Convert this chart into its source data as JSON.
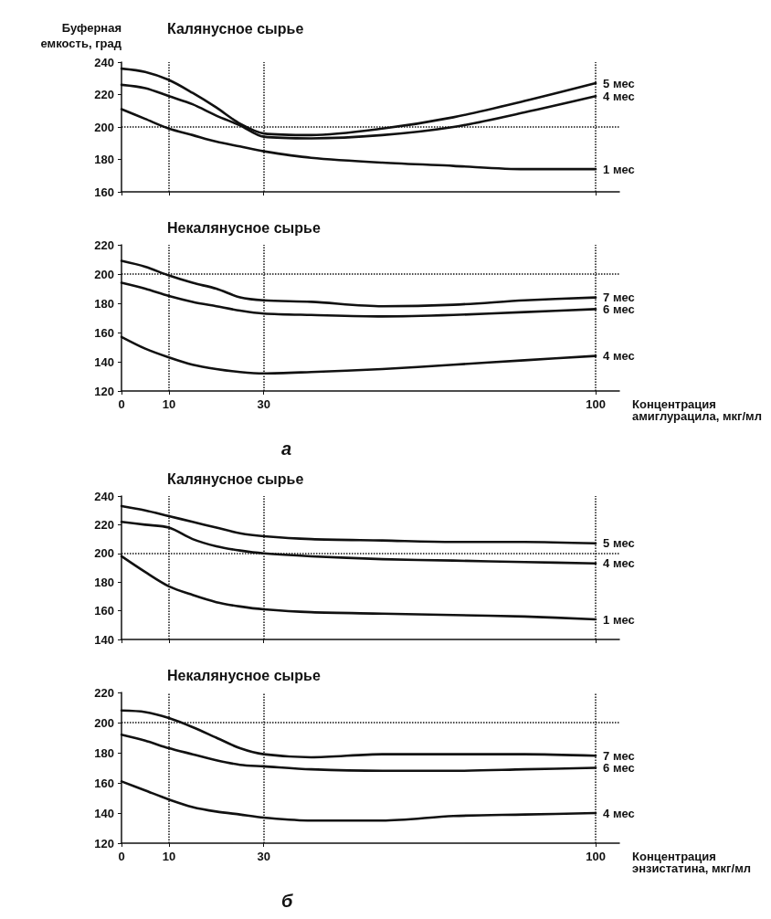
{
  "chart_data": [
    {
      "type": "line",
      "title": "Калянусное сырье",
      "ylabel": "Буферная емкость, град",
      "x": [
        0,
        5,
        10,
        15,
        20,
        25,
        30,
        40,
        55,
        70,
        85,
        100
      ],
      "xlim": [
        0,
        105
      ],
      "xticks": [
        0,
        10,
        30,
        100
      ],
      "ylim": [
        160,
        240
      ],
      "yticks": [
        160,
        180,
        200,
        220,
        240
      ],
      "tick_labels": "y",
      "grid": false,
      "legend": false,
      "marker": "none",
      "line_style": "solid",
      "ref_lines": [
        {
          "axis": "y",
          "value": 200,
          "line_style": "dotted"
        },
        {
          "axis": "x",
          "value": 10,
          "line_style": "dotted"
        },
        {
          "axis": "x",
          "value": 30,
          "line_style": "dotted"
        },
        {
          "axis": "x",
          "value": 100,
          "line_style": "dotted"
        }
      ],
      "series": [
        {
          "name": "5 мес",
          "color": "#111111",
          "values": [
            236,
            234,
            229,
            221,
            212,
            202,
            196,
            195,
            199,
            206,
            216,
            227
          ]
        },
        {
          "name": "4 мес",
          "color": "#111111",
          "values": [
            226,
            224,
            219,
            214,
            207,
            201,
            194,
            193,
            195,
            200,
            209,
            219
          ]
        },
        {
          "name": "1 мес",
          "color": "#111111",
          "values": [
            211,
            205,
            199,
            195,
            191,
            188,
            185,
            181,
            178,
            176,
            174,
            174
          ]
        }
      ]
    },
    {
      "type": "line",
      "title": "Некалянусное сырье",
      "xlabel": "Концентрация амиглурацила, мкг/мл",
      "annotations": [
        "а"
      ],
      "x": [
        0,
        5,
        10,
        15,
        20,
        25,
        30,
        40,
        55,
        70,
        85,
        100
      ],
      "xlim": [
        0,
        105
      ],
      "xticks": [
        0,
        10,
        30,
        100
      ],
      "ylim": [
        120,
        220
      ],
      "yticks": [
        120,
        140,
        160,
        180,
        200,
        220
      ],
      "grid": false,
      "legend": false,
      "marker": "none",
      "line_style": "solid",
      "ref_lines": [
        {
          "axis": "y",
          "value": 200,
          "line_style": "dotted"
        },
        {
          "axis": "x",
          "value": 10,
          "line_style": "dotted"
        },
        {
          "axis": "x",
          "value": 30,
          "line_style": "dotted"
        },
        {
          "axis": "x",
          "value": 100,
          "line_style": "dotted"
        }
      ],
      "series": [
        {
          "name": "7 мес",
          "color": "#111111",
          "values": [
            209,
            205,
            199,
            194,
            190,
            184,
            182,
            181,
            178,
            179,
            182,
            184
          ]
        },
        {
          "name": "6 мес",
          "color": "#111111",
          "values": [
            194,
            190,
            185,
            181,
            178,
            175,
            173,
            172,
            171,
            172,
            174,
            176
          ]
        },
        {
          "name": "4 мес",
          "color": "#111111",
          "values": [
            157,
            149,
            143,
            138,
            135,
            133,
            132,
            133,
            135,
            138,
            141,
            144
          ]
        }
      ]
    },
    {
      "type": "line",
      "title": "Калянусное сырье",
      "x": [
        0,
        5,
        10,
        15,
        20,
        25,
        30,
        40,
        55,
        70,
        85,
        100
      ],
      "xlim": [
        0,
        105
      ],
      "xticks": [
        0,
        10,
        30,
        100
      ],
      "ylim": [
        140,
        240
      ],
      "yticks": [
        140,
        160,
        180,
        200,
        220,
        240
      ],
      "tick_labels": "y",
      "grid": false,
      "legend": false,
      "marker": "none",
      "line_style": "solid",
      "ref_lines": [
        {
          "axis": "y",
          "value": 200,
          "line_style": "dotted"
        },
        {
          "axis": "x",
          "value": 10,
          "line_style": "dotted"
        },
        {
          "axis": "x",
          "value": 30,
          "line_style": "dotted"
        },
        {
          "axis": "x",
          "value": 100,
          "line_style": "dotted"
        }
      ],
      "series": [
        {
          "name": "5 мес",
          "color": "#111111",
          "values": [
            233,
            230,
            226,
            222,
            218,
            214,
            212,
            210,
            209,
            208,
            208,
            207
          ]
        },
        {
          "name": "4 мес",
          "color": "#111111",
          "values": [
            222,
            220,
            218,
            210,
            205,
            202,
            200,
            198,
            196,
            195,
            194,
            193
          ]
        },
        {
          "name": "1 мес",
          "color": "#111111",
          "values": [
            198,
            187,
            177,
            171,
            166,
            163,
            161,
            159,
            158,
            157,
            156,
            154
          ]
        }
      ]
    },
    {
      "type": "line",
      "title": "Некалянусное сырье",
      "xlabel": "Концентрация энзистатина, мкг/мл",
      "annotations": [
        "б"
      ],
      "x": [
        0,
        5,
        10,
        15,
        20,
        25,
        30,
        40,
        55,
        70,
        85,
        100
      ],
      "xlim": [
        0,
        105
      ],
      "xticks": [
        0,
        10,
        30,
        100
      ],
      "ylim": [
        120,
        220
      ],
      "yticks": [
        120,
        140,
        160,
        180,
        200,
        220
      ],
      "grid": false,
      "legend": false,
      "marker": "none",
      "line_style": "solid",
      "ref_lines": [
        {
          "axis": "y",
          "value": 200,
          "line_style": "dotted"
        },
        {
          "axis": "x",
          "value": 10,
          "line_style": "dotted"
        },
        {
          "axis": "x",
          "value": 30,
          "line_style": "dotted"
        },
        {
          "axis": "x",
          "value": 100,
          "line_style": "dotted"
        }
      ],
      "series": [
        {
          "name": "7 мес",
          "color": "#111111",
          "values": [
            208,
            207,
            203,
            197,
            190,
            183,
            179,
            177,
            179,
            179,
            179,
            178
          ]
        },
        {
          "name": "6 мес",
          "color": "#111111",
          "values": [
            192,
            188,
            183,
            179,
            175,
            172,
            171,
            169,
            168,
            168,
            169,
            170
          ]
        },
        {
          "name": "4 мес",
          "color": "#111111",
          "values": [
            161,
            155,
            149,
            144,
            141,
            139,
            137,
            135,
            135,
            138,
            139,
            140
          ]
        }
      ]
    }
  ]
}
